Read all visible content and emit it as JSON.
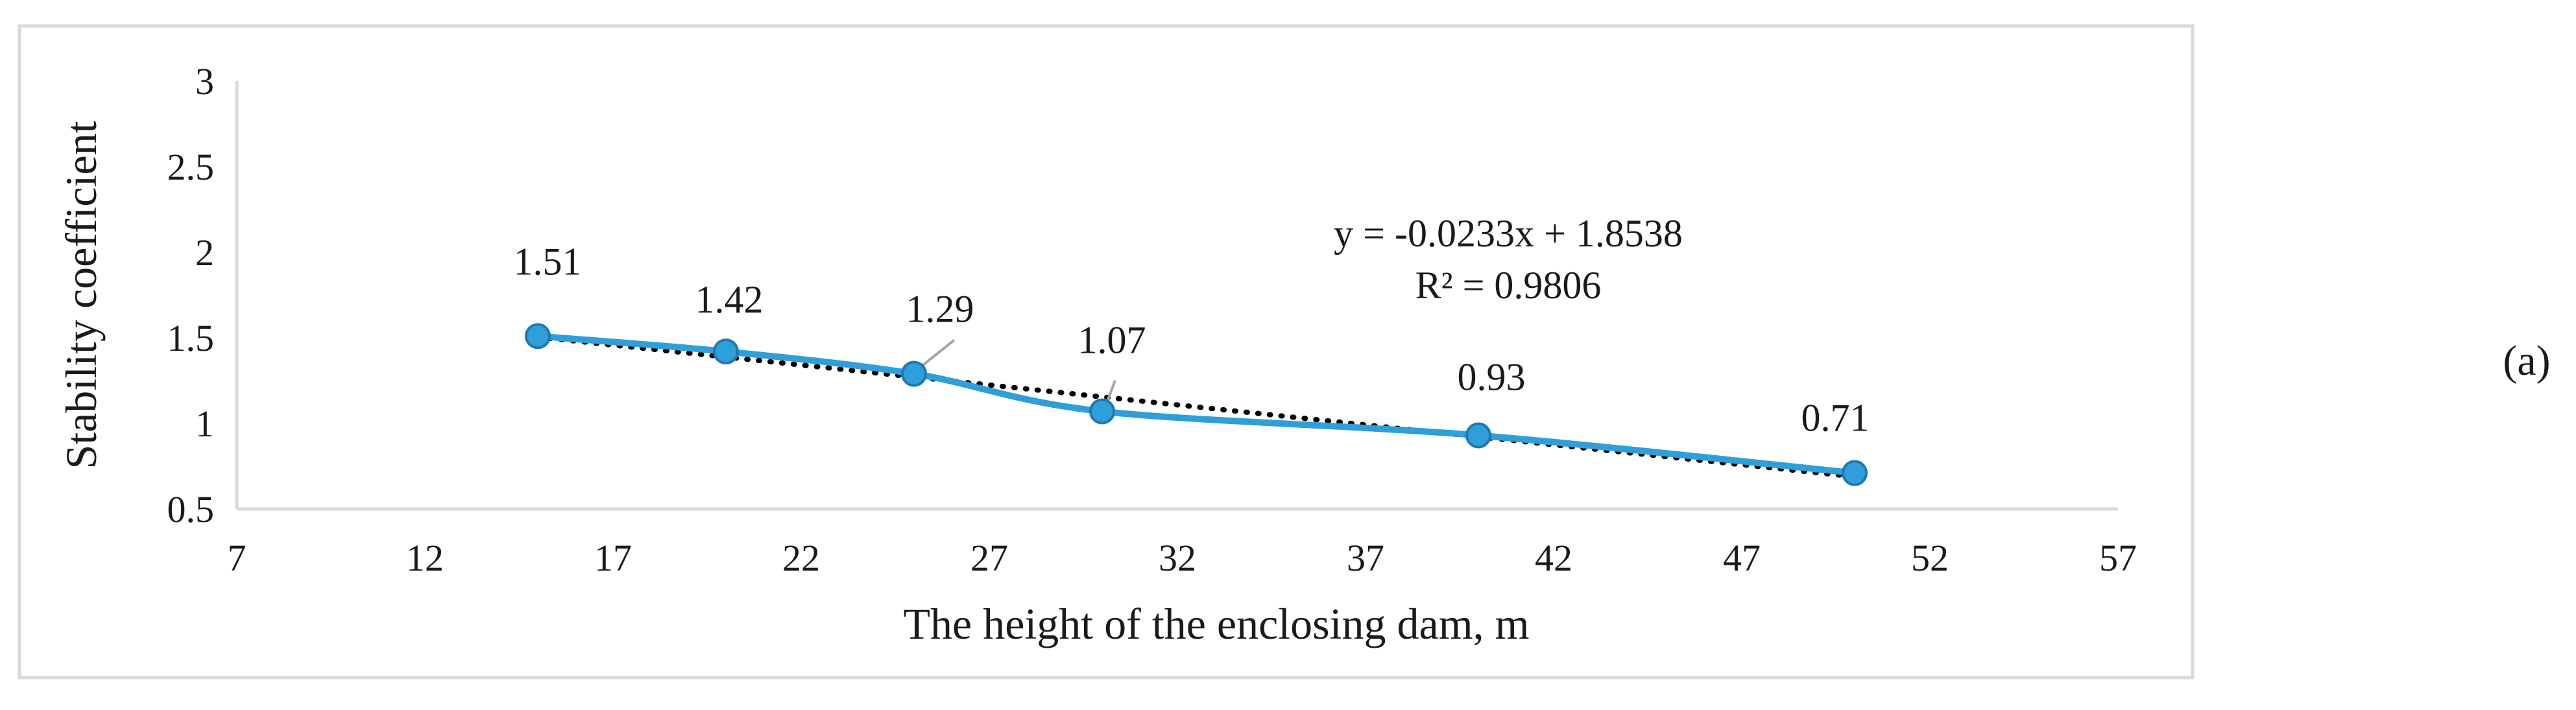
{
  "panel_label": "(a)",
  "colors": {
    "series": "#2e9fd8",
    "marker_edge": "#1f78b4",
    "trendline": "#000000",
    "frame": "#d9d9d9"
  },
  "chart_data": {
    "type": "line",
    "xlabel": "The height of the enclosing dam, m",
    "ylabel": "Stability coefficient",
    "xlim": [
      7,
      57
    ],
    "ylim": [
      0.5,
      3
    ],
    "x_ticks": [
      7,
      12,
      17,
      22,
      27,
      32,
      37,
      42,
      47,
      52,
      57
    ],
    "y_ticks": [
      0.5,
      1,
      1.5,
      2,
      2.5,
      3
    ],
    "y_tick_labels": [
      "0.5",
      "1",
      "1.5",
      "2",
      "2.5",
      "3"
    ],
    "grid": false,
    "series": [
      {
        "x": [
          15,
          20,
          25,
          30,
          40,
          50
        ],
        "y": [
          1.51,
          1.42,
          1.29,
          1.07,
          0.93,
          0.71
        ],
        "data_labels": [
          "1.51",
          "1.42",
          "1.29",
          "1.07",
          "0.93",
          "0.71"
        ],
        "smooth": true,
        "markers": "circle"
      }
    ],
    "trendline": {
      "type": "linear",
      "slope": -0.0233,
      "intercept": 1.8538,
      "equation": "y = -0.0233x + 1.8538",
      "r_squared": "R² = 0.9806"
    }
  }
}
